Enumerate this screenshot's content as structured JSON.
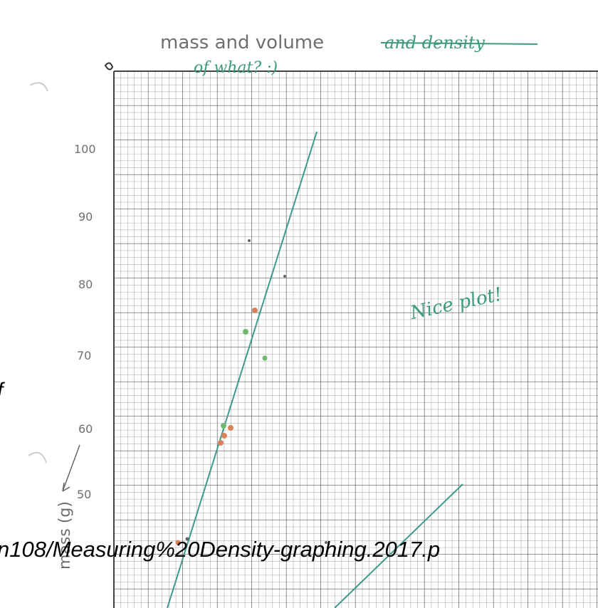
{
  "header": {
    "title": "mass and volume",
    "struck": "and density",
    "comment": "of what? :)"
  },
  "y_labels": [
    "100",
    "90",
    "80",
    "70",
    "60",
    "50"
  ],
  "y_axis_label": "mass (g)",
  "note": "Nice plot!",
  "overlay": {
    "url": "n108/Measuring%20Density-graphing.2017.p",
    "fragment": "f"
  }
}
